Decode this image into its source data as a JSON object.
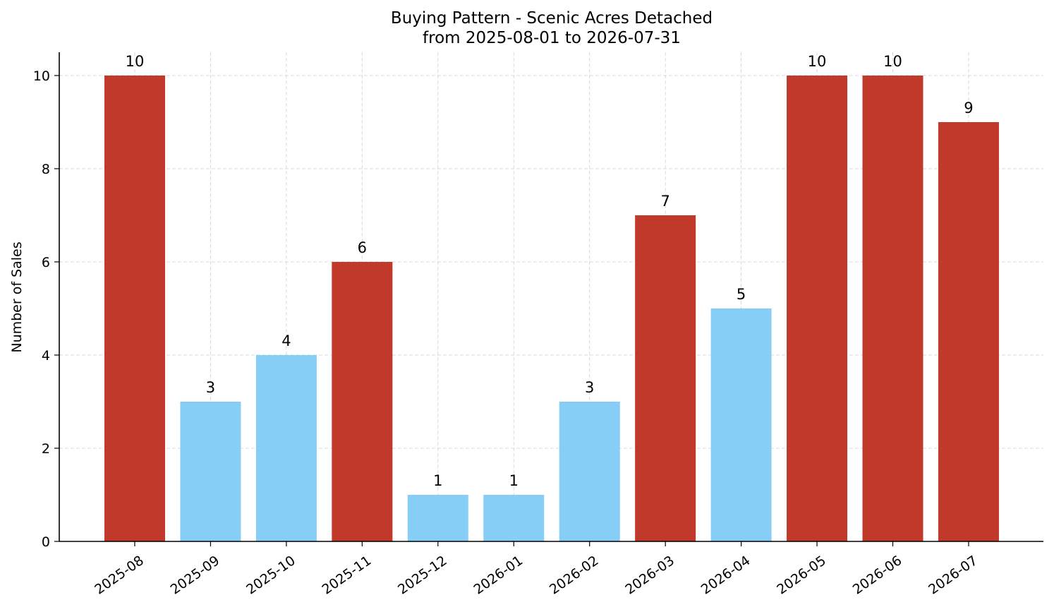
{
  "chart_data": {
    "type": "bar",
    "title": "Buying Pattern - Scenic Acres Detached",
    "subtitle": "from 2025-08-01 to 2026-07-31",
    "xlabel": "",
    "ylabel": "Number of Sales",
    "ylim": [
      0,
      10.5
    ],
    "yticks": [
      0,
      2,
      4,
      6,
      8,
      10
    ],
    "grid": true,
    "categories": [
      "2025-08",
      "2025-09",
      "2025-10",
      "2025-11",
      "2025-12",
      "2026-01",
      "2026-02",
      "2026-03",
      "2026-04",
      "2026-05",
      "2026-06",
      "2026-07"
    ],
    "values": [
      10,
      3,
      4,
      6,
      1,
      1,
      3,
      7,
      5,
      10,
      10,
      9
    ],
    "bar_colors": [
      "#c0392b",
      "#87cef7",
      "#87cef7",
      "#c0392b",
      "#87cef7",
      "#87cef7",
      "#87cef7",
      "#c0392b",
      "#87cef7",
      "#c0392b",
      "#c0392b",
      "#c0392b"
    ]
  }
}
